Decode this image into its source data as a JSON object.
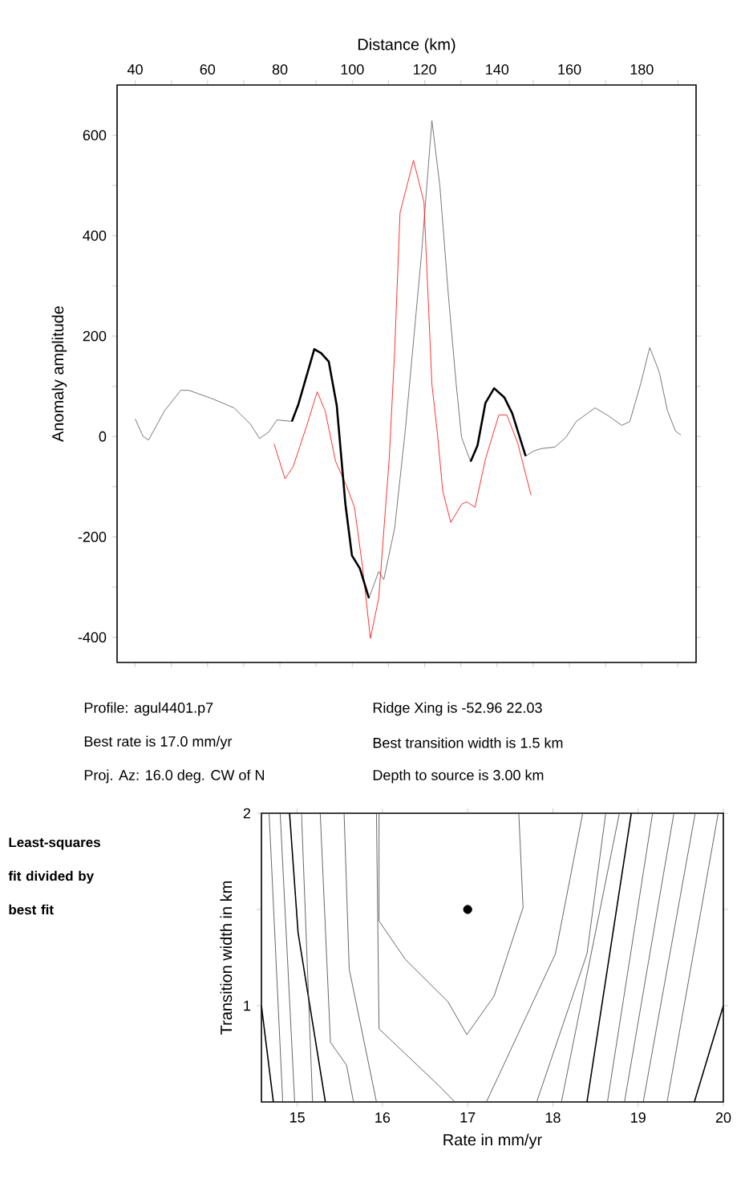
{
  "chart_data": [
    {
      "type": "line",
      "xlabel": "Distance (km)",
      "ylabel": "Anomaly amplitude",
      "xlim": [
        35,
        195
      ],
      "ylim": [
        -450,
        700
      ],
      "xticks": [
        {
          "value": 40,
          "label": "40"
        },
        {
          "value": 50,
          "label": null
        },
        {
          "value": 60,
          "label": "60"
        },
        {
          "value": 70,
          "label": null
        },
        {
          "value": 80,
          "label": "80"
        },
        {
          "value": 90,
          "label": null
        },
        {
          "value": 100,
          "label": "100"
        },
        {
          "value": 110,
          "label": null
        },
        {
          "value": 120,
          "label": "120"
        },
        {
          "value": 130,
          "label": null
        },
        {
          "value": 140,
          "label": "140"
        },
        {
          "value": 150,
          "label": null
        },
        {
          "value": 160,
          "label": "160"
        },
        {
          "value": 170,
          "label": null
        },
        {
          "value": 180,
          "label": "180"
        },
        {
          "value": 190,
          "label": null
        }
      ],
      "yticks": [
        {
          "value": -400,
          "label": "-400"
        },
        {
          "value": -300,
          "label": null
        },
        {
          "value": -200,
          "label": "-200"
        },
        {
          "value": -100,
          "label": null
        },
        {
          "value": 0,
          "label": "0"
        },
        {
          "value": 100,
          "label": null
        },
        {
          "value": 200,
          "label": "200"
        },
        {
          "value": 300,
          "label": null
        },
        {
          "value": 400,
          "label": "400"
        },
        {
          "value": 500,
          "label": null
        },
        {
          "value": 600,
          "label": "600"
        }
      ],
      "marker": "none",
      "series": [
        {
          "color": "#555555",
          "x": [
            40,
            42.2,
            43.7,
            48.1,
            52.6,
            54.8,
            61.4,
            67.3,
            71.8,
            74.4,
            76.9,
            79.2,
            83.3,
            85.1,
            89.5,
            91.4,
            93.5,
            95.7,
            98.1,
            99.9,
            102.1,
            104.6,
            107.3,
            108.7,
            111.7,
            114.6,
            116.1,
            119.1,
            122,
            124.2,
            126.5,
            128.7,
            130.2,
            132.7,
            134.6,
            136.8,
            139.2,
            142,
            144.2,
            147.9,
            150.1,
            152.3,
            156,
            159,
            161.9,
            167.1,
            170.8,
            174.5,
            176.7,
            179.7,
            181.9,
            182.2,
            184.1,
            184.9,
            187.1,
            189.3,
            190.8
          ],
          "values": [
            35,
            0,
            -7,
            51,
            92,
            92,
            75,
            57,
            25,
            -4,
            9,
            33,
            30,
            64,
            174,
            166,
            149,
            62,
            -135,
            -237,
            -263,
            -322,
            -269,
            -285,
            -183,
            9,
            126,
            361,
            629,
            499,
            286,
            105,
            -2,
            -50,
            -18,
            67,
            96,
            78,
            46,
            -39,
            -29,
            -24,
            -21,
            -2,
            30,
            57,
            41,
            22,
            30,
            105,
            169,
            177,
            142,
            126,
            51,
            11,
            3
          ]
        },
        {
          "color": "#ff0000",
          "x": [
            78.4,
            81.4,
            83.6,
            87.3,
            90.3,
            92.5,
            95.4,
            98.4,
            100.6,
            102.8,
            105,
            107.3,
            110.2,
            111.7,
            113.2,
            116.9,
            119.8,
            122,
            123.5,
            125,
            127.2,
            130.2,
            131.6,
            133.9,
            136.8,
            140.5,
            142.7,
            145.7,
            149.4
          ],
          "values": [
            -15,
            -84,
            -61,
            19,
            89,
            51,
            -50,
            -98,
            -141,
            -258,
            -402,
            -322,
            -45,
            169,
            446,
            550,
            467,
            104,
            8,
            -109,
            -171,
            -135,
            -130,
            -141,
            -45,
            43,
            43,
            -13,
            -117
          ]
        },
        {
          "color": "#000000",
          "x": [
            83.3,
            85.1,
            89.5,
            91.4,
            93.5,
            95.7,
            98.1,
            99.9,
            102.1,
            104.6,
            118,
            132.7,
            134.6,
            136.8,
            139.2,
            142,
            144.2,
            147.9
          ],
          "values": [
            30,
            64,
            174,
            166,
            149,
            62,
            -135,
            -237,
            -263,
            -322,
            null,
            -50,
            -18,
            67,
            96,
            78,
            46,
            -39
          ]
        }
      ]
    },
    {
      "type": "other",
      "annotations": [
        "Profile: agul4401.p7",
        "Ridge Xing is -52.96 22.03",
        "Best rate is 17.0 mm/yr",
        "Best transition width is 1.5 km",
        "Proj. Az: 16.0 deg. CW of N",
        "Depth to source is 3.00 km"
      ]
    },
    {
      "type": "line",
      "xlabel": "Rate in mm/yr",
      "ylabel": "Transition width in km",
      "xlim": [
        14.58,
        20
      ],
      "ylim": [
        0.5,
        2
      ],
      "xticks": [
        15,
        16,
        17,
        18,
        19,
        20
      ],
      "yticks": [
        {
          "value": 1,
          "label": "1"
        },
        {
          "value": 1.5,
          "label": null
        },
        {
          "value": 2,
          "label": "2"
        }
      ],
      "marker": "none",
      "annotations": [
        "Least-squares fit divided by best fit"
      ],
      "series": [
        {
          "color": "#000000",
          "x": [
            14.58,
            14.72
          ],
          "values": [
            1.0,
            0.5
          ]
        },
        {
          "color": "#404040",
          "x": [
            14.67,
            14.83
          ],
          "values": [
            2,
            0.5
          ]
        },
        {
          "color": "#404040",
          "x": [
            14.8,
            14.97
          ],
          "values": [
            2,
            0.5
          ]
        },
        {
          "color": "#000000",
          "x": [
            14.91,
            15.01,
            15.33
          ],
          "values": [
            2,
            1.38,
            0.5
          ]
        },
        {
          "color": "#404040",
          "x": [
            15.05,
            15.18
          ],
          "values": [
            2,
            0.5
          ]
        },
        {
          "color": "#404040",
          "x": [
            15.27,
            15.39,
            15.58,
            15.66
          ],
          "values": [
            2,
            0.81,
            0.69,
            0.5
          ]
        },
        {
          "color": "#404040",
          "x": [
            15.55,
            15.61,
            15.93
          ],
          "values": [
            2,
            1.19,
            0.5
          ]
        },
        {
          "color": "#404040",
          "x": [
            15.96,
            15.96,
            16.27,
            16.77,
            16.99,
            17.31,
            17.65,
            17.6
          ],
          "values": [
            2,
            1.44,
            1.24,
            1.02,
            0.85,
            1.05,
            1.51,
            2
          ]
        },
        {
          "color": "#404040",
          "x": [
            15.93,
            15.96,
            16.65,
            16.85
          ],
          "values": [
            2,
            0.88,
            0.59,
            0.5
          ]
        },
        {
          "color": "#404040",
          "x": [
            17.22,
            18.03,
            18.35
          ],
          "values": [
            0.5,
            1.27,
            2
          ]
        },
        {
          "color": "#404040",
          "x": [
            17.81,
            18.4,
            18.62
          ],
          "values": [
            0.5,
            1.27,
            2
          ]
        },
        {
          "color": "#404040",
          "x": [
            18.1,
            18.78
          ],
          "values": [
            0.5,
            2
          ]
        },
        {
          "color": "#000000",
          "x": [
            18.4,
            18.92
          ],
          "values": [
            0.5,
            2
          ]
        },
        {
          "color": "#404040",
          "x": [
            18.64,
            19.17
          ],
          "values": [
            0.5,
            2
          ]
        },
        {
          "color": "#404040",
          "x": [
            18.84,
            19.42
          ],
          "values": [
            0.5,
            2
          ]
        },
        {
          "color": "#404040",
          "x": [
            19.06,
            19.67
          ],
          "values": [
            0.5,
            2
          ]
        },
        {
          "color": "#404040",
          "x": [
            19.34,
            19.94
          ],
          "values": [
            0.5,
            2
          ]
        },
        {
          "color": "#000000",
          "x": [
            19.66,
            20
          ],
          "values": [
            0.5,
            1.0
          ]
        },
        {
          "type": "scatter",
          "marker": "circle",
          "color": "#000000",
          "x": [
            17
          ],
          "values": [
            1.5
          ]
        }
      ]
    }
  ]
}
